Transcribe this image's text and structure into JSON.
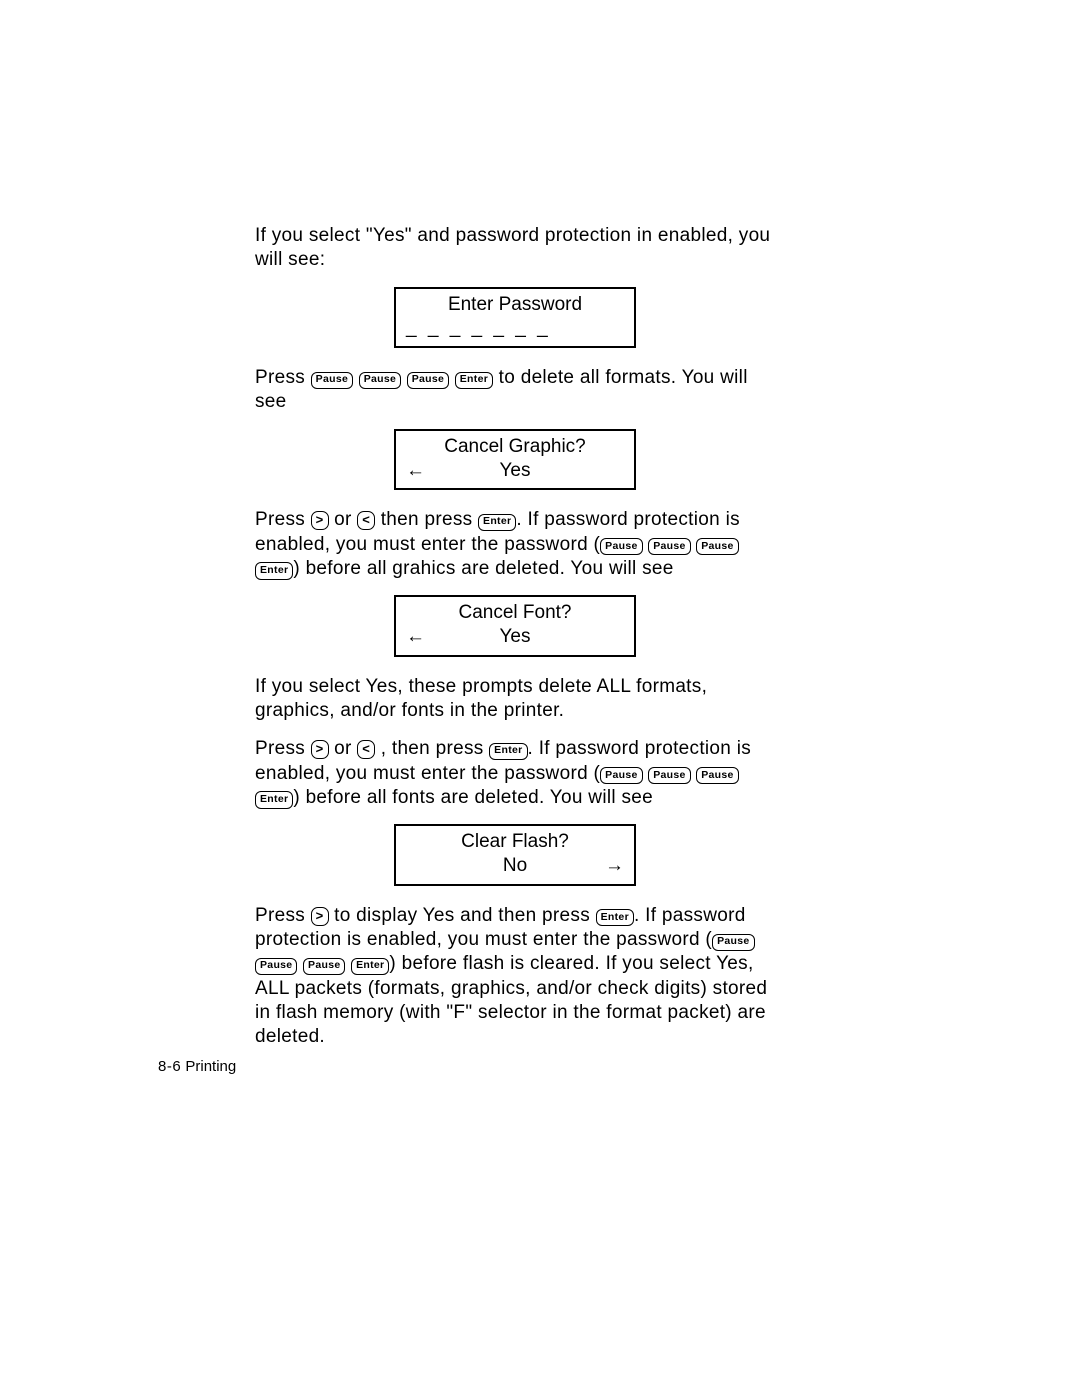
{
  "para1": "If you select \"Yes\" and password protection in enabled, you will see:",
  "box1": {
    "line1": "Enter Password",
    "line2": "_ _ _ _ _ _ _"
  },
  "seg": {
    "press": "Press ",
    "or": " or ",
    "then_press": " then press ",
    "then_press_comma": " , then press ",
    "period_sp": ".  ",
    "open_paren": "(",
    "close_paren": ")",
    "sp": " "
  },
  "keys": {
    "pause": "Pause",
    "enter": "Enter",
    "gt": ">",
    "lt": "<"
  },
  "p2_tail": " to delete all formats.  You will see",
  "box2": {
    "line1": "Cancel Graphic?",
    "line2": "Yes",
    "arrow_left": "←"
  },
  "p3_mid1": "If password protection is enabled, you must enter the password (",
  "p3_tail": " before all grahics are deleted.  You will see",
  "box3": {
    "line1": "Cancel Font?",
    "line2": "Yes",
    "arrow_left": "←"
  },
  "para4": "If you select Yes, these prompts delete ALL formats, graphics, and/or fonts in the printer.",
  "p5_mid1": "If password protection is enabled, you must enter the password (",
  "p5_tail": " before all fonts are deleted.  You will see",
  "box4": {
    "line1": "Clear Flash?",
    "line2": "No",
    "arrow_right": "→"
  },
  "p6_a": " to display Yes and then press ",
  "p6_b": "If password protection is enabled, you must enter the password (",
  "p6_c": " before flash is cleared.  If you select Yes, ALL packets (formats, graphics, and/or check digits) stored in flash memory (with \"F\" selector in the format packet) are deleted.",
  "footer": {
    "page": "8-6",
    "label": " Printing"
  }
}
